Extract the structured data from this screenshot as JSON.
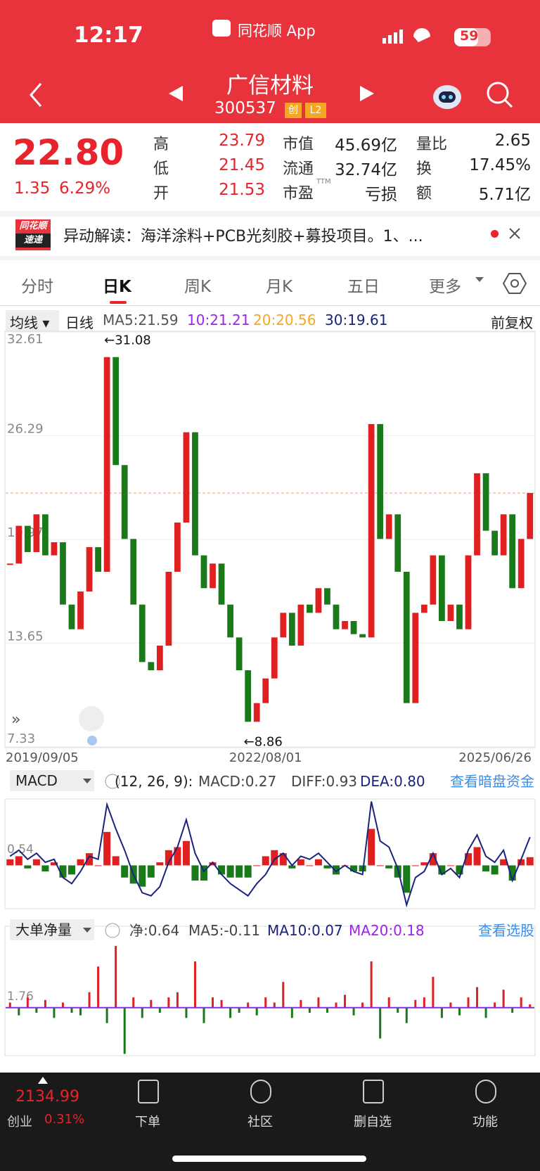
{
  "status_bar": {
    "time": "12:17",
    "app": "同花顺 App",
    "battery": "59"
  },
  "header": {
    "name": "广信材料",
    "code": "300537",
    "badges": [
      "创",
      "L2"
    ]
  },
  "quote": {
    "price": 22.8,
    "price_label": "22.80",
    "change": "1.35",
    "change_pct": "6.29%",
    "fields": [
      {
        "label": "高",
        "value": "23.79"
      },
      {
        "label": "低",
        "value": "21.45"
      },
      {
        "label": "开",
        "value": "21.53"
      },
      {
        "label": "市值",
        "value": "45.69亿"
      },
      {
        "label": "流通",
        "value": "32.74亿"
      },
      {
        "label": "市盈",
        "sup": "TTM",
        "value": "亏损"
      },
      {
        "label": "量比",
        "value": "2.65"
      },
      {
        "label": "换",
        "value": "17.45%"
      },
      {
        "label": "额",
        "value": "5.71亿"
      }
    ]
  },
  "news": {
    "logo_top": "同花顺",
    "logo_bottom": "速递",
    "text": "异动解读：海洋涂料+PCB光刻胶+募投项目。1、..."
  },
  "tabs": [
    "分时",
    "日K",
    "周K",
    "月K",
    "五日",
    "更多"
  ],
  "active_tab": 1,
  "indicator_bar": {
    "selector": "均线",
    "period": "日线",
    "ma5": "MA5:21.59",
    "ma10": "10:21.21",
    "ma20": "20:20.56",
    "ma30": "30:19.61",
    "adjust": "前复权"
  },
  "chart_data": [
    {
      "type": "candle",
      "up_color": "#e02020",
      "down_color": "#1a7a1a",
      "ylim": [
        7.33,
        32.61
      ],
      "yticks": [
        32.61,
        26.29,
        19.97,
        13.65,
        7.33
      ],
      "grid": true,
      "annotations": [
        "←31.08",
        "←8.86"
      ],
      "categories": [
        "2019/09/05",
        null,
        null,
        null,
        null,
        null,
        null,
        null,
        null,
        null,
        null,
        null,
        null,
        null,
        null,
        null,
        null,
        null,
        null,
        null,
        null,
        null,
        null,
        null,
        null,
        null,
        null,
        null,
        null,
        "2022/08/01",
        null,
        null,
        null,
        null,
        null,
        null,
        null,
        null,
        null,
        null,
        null,
        null,
        null,
        null,
        null,
        null,
        null,
        null,
        null,
        null,
        null,
        null,
        null,
        null,
        null,
        null,
        null,
        null,
        null,
        "2025/06/26"
      ],
      "values": [
        18.5,
        20.8,
        19.2,
        21.5,
        19,
        19.8,
        16,
        14.5,
        16.8,
        19.5,
        18,
        31.08,
        24.5,
        20,
        16,
        12.5,
        12,
        13.5,
        18,
        21,
        26.5,
        19,
        17,
        18.5,
        16,
        14,
        12,
        8.86,
        10,
        11.5,
        14,
        15.5,
        13.5,
        16,
        15.5,
        17,
        16,
        14.5,
        15,
        14.2,
        14,
        27,
        20,
        21.5,
        18,
        10,
        15.5,
        16,
        19,
        15,
        16,
        14.5,
        19,
        24,
        20.5,
        19,
        21.5,
        17,
        20,
        22.8
      ]
    },
    {
      "type": "macd",
      "selector": "MACD",
      "params": "(12, 26, 9):",
      "macd_label": "MACD:0.27",
      "diff_label": "DIFF:0.93",
      "dea_label": "DEA:0.80",
      "link": "查看暗盘资金",
      "ylim": [
        -1.4,
        2.16
      ],
      "yticks": [
        0.54
      ],
      "up_color": "#e02020",
      "down_color": "#1a7a1a",
      "line_color": "#1a237e",
      "histogram": [
        0.2,
        0.3,
        -0.1,
        0.2,
        -0.2,
        0.1,
        -0.4,
        -0.3,
        0.2,
        0.4,
        0,
        1.1,
        0.3,
        -0.4,
        -0.6,
        -0.7,
        -0.4,
        0.1,
        0.5,
        0.6,
        0.8,
        -0.5,
        -0.5,
        0.1,
        -0.3,
        -0.4,
        -0.4,
        -0.4,
        0,
        0.3,
        0.5,
        0.4,
        -0.1,
        0.2,
        0,
        0.2,
        -0.1,
        -0.3,
        0,
        -0.2,
        -0.2,
        1.2,
        0,
        -0.1,
        -0.4,
        -0.9,
        0,
        0.1,
        0.4,
        -0.3,
        0,
        -0.3,
        0.4,
        0.6,
        -0.2,
        -0.3,
        0.2,
        -0.5,
        0.2,
        0.27
      ],
      "diff": [
        0.3,
        0.5,
        0.2,
        0.4,
        0.1,
        0.2,
        -0.4,
        -0.6,
        -0.2,
        0.3,
        0.2,
        2.0,
        1.2,
        0.5,
        -0.3,
        -0.9,
        -1.0,
        -0.7,
        0.1,
        0.6,
        1.5,
        0.4,
        -0.2,
        0.1,
        -0.3,
        -0.6,
        -0.8,
        -1.0,
        -0.6,
        -0.3,
        0.2,
        0.4,
        0,
        0.3,
        0.2,
        0.4,
        0.1,
        -0.2,
        0,
        -0.2,
        -0.3,
        2.1,
        0.8,
        0.6,
        -0.1,
        -1.3,
        -0.4,
        -0.2,
        0.4,
        -0.3,
        -0.1,
        -0.4,
        0.5,
        1.0,
        0.3,
        0.1,
        0.5,
        -0.5,
        0.2,
        0.93
      ]
    },
    {
      "type": "net",
      "selector": "大单净量",
      "net_label": "净:0.64",
      "ma5_label": "MA5:-0.11",
      "ma10_label": "MA10:0.07",
      "ma20_label": "MA20:0.18",
      "link": "查看选股",
      "ylim": [
        -9.2,
        15.7
      ],
      "yticks": [
        1.76
      ],
      "up_color": "#e02020",
      "down_color": "#1a7a1a",
      "values": [
        1,
        -1.5,
        2,
        -1,
        1.5,
        -2,
        1,
        -1,
        -1.5,
        3,
        8,
        -3,
        12,
        -9,
        2,
        -2,
        1.5,
        -1,
        2,
        3,
        -2,
        9,
        -3,
        2,
        1.5,
        -2,
        -1,
        1,
        -1.5,
        2,
        1,
        5,
        -2,
        1.5,
        -1,
        2,
        -1,
        1,
        2.5,
        -1.5,
        1,
        9,
        -6,
        2,
        -1,
        -3,
        1.5,
        2,
        6,
        -2,
        1,
        -1.5,
        2,
        4,
        -2,
        1,
        3.5,
        -1,
        2,
        0.64
      ]
    }
  ],
  "bottom_bar": {
    "index_value": "2134.99",
    "index_name": "创业",
    "index_change": "0.31%",
    "items": [
      "下单",
      "社区",
      "删自选",
      "功能"
    ]
  }
}
